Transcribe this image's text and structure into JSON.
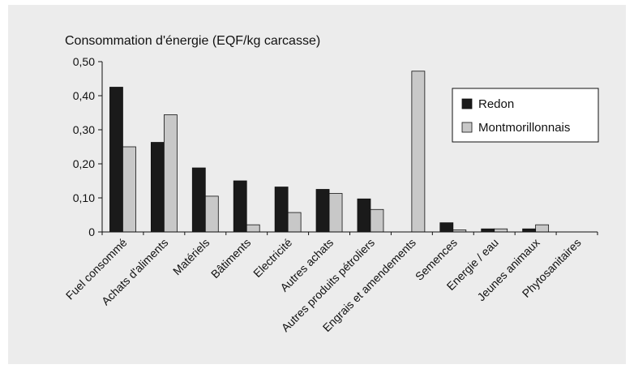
{
  "chart_data": {
    "type": "bar",
    "title": "Consommation d'énergie (EQF/kg carcasse)",
    "xlabel": "",
    "ylabel": "",
    "ylim": [
      0,
      0.5
    ],
    "yticks": [
      0,
      0.1,
      0.2,
      0.3,
      0.4,
      0.5
    ],
    "ytick_labels": [
      "0",
      "0,10",
      "0,20",
      "0,30",
      "0,40",
      "0,50"
    ],
    "grid": false,
    "legend_position": "right",
    "categories": [
      "Fuel consommé",
      "Achats d'aliments",
      "Matériels",
      "Bâtiments",
      "Electricité",
      "Autres achats",
      "Autres produits pétroliers",
      "Engrais et amendements",
      "Semences",
      "Energie / eau",
      "Jeunes animaux",
      "Phytosanitaires"
    ],
    "series": [
      {
        "name": "Redon",
        "color": "#1a1a1a",
        "values": [
          0.425,
          0.263,
          0.188,
          0.15,
          0.132,
          0.125,
          0.097,
          0,
          0.027,
          0.009,
          0.009,
          0
        ]
      },
      {
        "name": "Montmorillonnais",
        "color": "#c8c8c8",
        "values": [
          0.25,
          0.344,
          0.105,
          0.021,
          0.057,
          0.113,
          0.066,
          0.472,
          0.006,
          0.009,
          0.021,
          0
        ]
      }
    ]
  }
}
